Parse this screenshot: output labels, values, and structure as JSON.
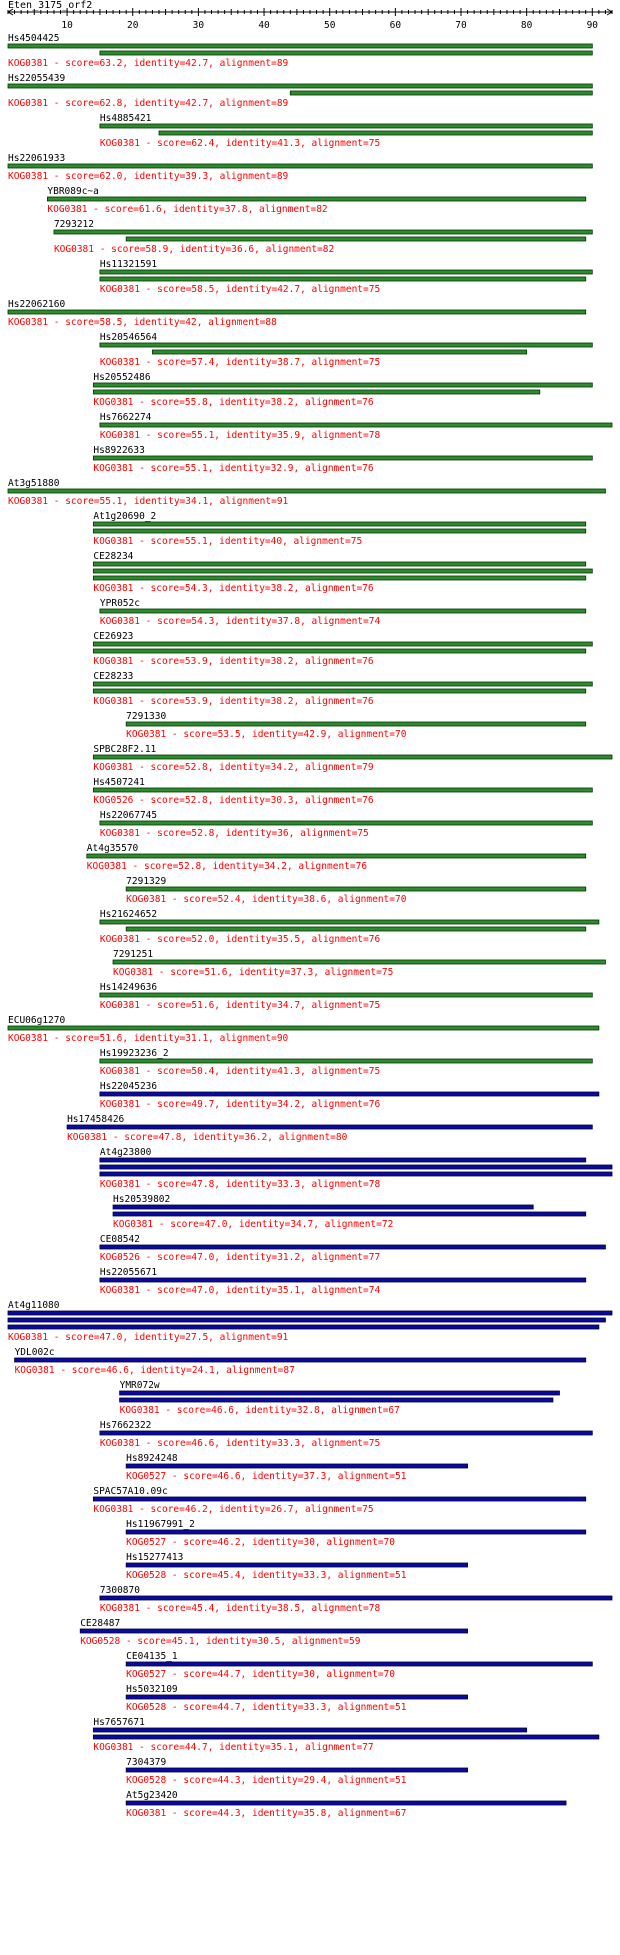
{
  "title": "Eten_3175_orf2",
  "colors": {
    "text": "#000000",
    "score_text": "#ff0000",
    "green_bar": "#2e8b2e",
    "green_bar_edge": "#003300",
    "blue_bar": "#0a0aa0",
    "blue_bar_edge": "#000033"
  },
  "chart_data": {
    "type": "bar",
    "title": "Eten_3175_orf2",
    "xlabel": "",
    "ylabel": "",
    "xlim": [
      1,
      93
    ],
    "x_tick_labels": [
      "10",
      "20",
      "30",
      "40",
      "50",
      "60",
      "70",
      "80",
      "90"
    ],
    "x_ticks": [
      10,
      20,
      30,
      40,
      50,
      60,
      70,
      80,
      90
    ],
    "grid": false,
    "legend": "none",
    "hits": [
      {
        "name": "Hs4504425",
        "label": "KOG0381 - score=63.2, identity=42.7, alignment=89",
        "color": "green",
        "segments": [
          [
            1,
            90
          ],
          [
            15,
            90
          ]
        ]
      },
      {
        "name": "Hs22055439",
        "label": "KOG0381 - score=62.8, identity=42.7, alignment=89",
        "color": "green",
        "segments": [
          [
            1,
            90
          ],
          [
            44,
            90
          ]
        ]
      },
      {
        "name": "Hs4885421",
        "label": "KOG0381 - score=62.4, identity=41.3, alignment=75",
        "color": "green",
        "segments": [
          [
            15,
            90
          ],
          [
            24,
            90
          ]
        ]
      },
      {
        "name": "Hs22061933",
        "label": "KOG0381 - score=62.0, identity=39.3, alignment=89",
        "color": "green",
        "segments": [
          [
            1,
            90
          ]
        ]
      },
      {
        "name": "YBR089c~a",
        "label": "KOG0381 - score=61.6, identity=37.8, alignment=82",
        "color": "green",
        "segments": [
          [
            7,
            89
          ]
        ]
      },
      {
        "name": "7293212",
        "label": "KOG0381 - score=58.9, identity=36.6, alignment=82",
        "color": "green",
        "segments": [
          [
            8,
            90
          ],
          [
            19,
            89
          ]
        ]
      },
      {
        "name": "Hs11321591",
        "label": "KOG0381 - score=58.5, identity=42.7, alignment=75",
        "color": "green",
        "segments": [
          [
            15,
            90
          ],
          [
            15,
            89
          ]
        ]
      },
      {
        "name": "Hs22062160",
        "label": "KOG0381 - score=58.5, identity=42, alignment=88",
        "color": "green",
        "segments": [
          [
            1,
            89
          ]
        ]
      },
      {
        "name": "Hs20546564",
        "label": "KOG0381 - score=57.4, identity=38.7, alignment=75",
        "color": "green",
        "segments": [
          [
            15,
            90
          ],
          [
            23,
            80
          ]
        ]
      },
      {
        "name": "Hs20552486",
        "label": "KOG0381 - score=55.8, identity=38.2, alignment=76",
        "color": "green",
        "segments": [
          [
            14,
            90
          ],
          [
            14,
            82
          ]
        ]
      },
      {
        "name": "Hs7662274",
        "label": "KOG0381 - score=55.1, identity=35.9, alignment=78",
        "color": "green",
        "segments": [
          [
            15,
            93
          ]
        ]
      },
      {
        "name": "Hs8922633",
        "label": "KOG0381 - score=55.1, identity=32.9, alignment=76",
        "color": "green",
        "segments": [
          [
            14,
            90
          ]
        ]
      },
      {
        "name": "At3g51880",
        "label": "KOG0381 - score=55.1, identity=34.1, alignment=91",
        "color": "green",
        "segments": [
          [
            1,
            92
          ]
        ]
      },
      {
        "name": "At1g20690_2",
        "label": "KOG0381 - score=55.1, identity=40, alignment=75",
        "color": "green",
        "segments": [
          [
            14,
            89
          ],
          [
            14,
            89
          ]
        ]
      },
      {
        "name": "CE28234",
        "label": "KOG0381 - score=54.3, identity=38.2, alignment=76",
        "color": "green",
        "segments": [
          [
            14,
            89
          ],
          [
            14,
            90
          ],
          [
            14,
            89
          ]
        ]
      },
      {
        "name": "YPR052c",
        "label": "KOG0381 - score=54.3, identity=37.8, alignment=74",
        "color": "green",
        "segments": [
          [
            15,
            89
          ]
        ]
      },
      {
        "name": "CE26923",
        "label": "KOG0381 - score=53.9, identity=38.2, alignment=76",
        "color": "green",
        "segments": [
          [
            14,
            90
          ],
          [
            14,
            89
          ]
        ]
      },
      {
        "name": "CE28233",
        "label": "KOG0381 - score=53.9, identity=38.2, alignment=76",
        "color": "green",
        "segments": [
          [
            14,
            90
          ],
          [
            14,
            89
          ]
        ]
      },
      {
        "name": "7291330",
        "label": "KOG0381 - score=53.5, identity=42.9, alignment=70",
        "color": "green",
        "segments": [
          [
            19,
            89
          ]
        ]
      },
      {
        "name": "SPBC28F2.11",
        "label": "KOG0381 - score=52.8, identity=34.2, alignment=79",
        "color": "green",
        "segments": [
          [
            14,
            93
          ]
        ]
      },
      {
        "name": "Hs4507241",
        "label": "KOG0526 - score=52.8, identity=30.3, alignment=76",
        "color": "green",
        "segments": [
          [
            14,
            90
          ]
        ]
      },
      {
        "name": "Hs22067745",
        "label": "KOG0381 - score=52.8, identity=36, alignment=75",
        "color": "green",
        "segments": [
          [
            15,
            90
          ]
        ]
      },
      {
        "name": "At4g35570",
        "label": "KOG0381 - score=52.8, identity=34.2, alignment=76",
        "color": "green",
        "segments": [
          [
            13,
            89
          ]
        ]
      },
      {
        "name": "7291329",
        "label": "KOG0381 - score=52.4, identity=38.6, alignment=70",
        "color": "green",
        "segments": [
          [
            19,
            89
          ]
        ]
      },
      {
        "name": "Hs21624652",
        "label": "KOG0381 - score=52.0, identity=35.5, alignment=76",
        "color": "green",
        "segments": [
          [
            15,
            91
          ],
          [
            19,
            89
          ]
        ]
      },
      {
        "name": "7291251",
        "label": "KOG0381 - score=51.6, identity=37.3, alignment=75",
        "color": "green",
        "segments": [
          [
            17,
            92
          ]
        ]
      },
      {
        "name": "Hs14249636",
        "label": "KOG0381 - score=51.6, identity=34.7, alignment=75",
        "color": "green",
        "segments": [
          [
            15,
            90
          ]
        ]
      },
      {
        "name": "ECU06g1270",
        "label": "KOG0381 - score=51.6, identity=31.1, alignment=90",
        "color": "green",
        "segments": [
          [
            1,
            91
          ]
        ]
      },
      {
        "name": "Hs19923236_2",
        "label": "KOG0381 - score=50.4, identity=41.3, alignment=75",
        "color": "green",
        "segments": [
          [
            15,
            90
          ]
        ]
      },
      {
        "name": "Hs22045236",
        "label": "KOG0381 - score=49.7, identity=34.2, alignment=76",
        "color": "blue",
        "segments": [
          [
            15,
            91
          ]
        ]
      },
      {
        "name": "Hs17458426",
        "label": "KOG0381 - score=47.8, identity=36.2, alignment=80",
        "color": "blue",
        "segments": [
          [
            10,
            90
          ]
        ]
      },
      {
        "name": "At4g23800",
        "label": "KOG0381 - score=47.8, identity=33.3, alignment=78",
        "color": "blue",
        "segments": [
          [
            15,
            89
          ],
          [
            15,
            93
          ],
          [
            15,
            93
          ]
        ]
      },
      {
        "name": "Hs20539802",
        "label": "KOG0381 - score=47.0, identity=34.7, alignment=72",
        "color": "blue",
        "segments": [
          [
            17,
            81
          ],
          [
            17,
            89
          ]
        ]
      },
      {
        "name": "CE08542",
        "label": "KOG0526 - score=47.0, identity=31.2, alignment=77",
        "color": "blue",
        "segments": [
          [
            15,
            92
          ]
        ]
      },
      {
        "name": "Hs22055671",
        "label": "KOG0381 - score=47.0, identity=35.1, alignment=74",
        "color": "blue",
        "segments": [
          [
            15,
            89
          ]
        ]
      },
      {
        "name": "At4g11080",
        "label": "KOG0381 - score=47.0, identity=27.5, alignment=91",
        "color": "blue",
        "segments": [
          [
            1,
            93
          ],
          [
            1,
            92
          ],
          [
            1,
            91
          ]
        ]
      },
      {
        "name": "YDL002c",
        "label": "KOG0381 - score=46.6, identity=24.1, alignment=87",
        "color": "blue",
        "segments": [
          [
            2,
            89
          ]
        ]
      },
      {
        "name": "YMR072w",
        "label": "KOG0381 - score=46.6, identity=32.8, alignment=67",
        "color": "blue",
        "segments": [
          [
            18,
            85
          ],
          [
            18,
            84
          ]
        ]
      },
      {
        "name": "Hs7662322",
        "label": "KOG0381 - score=46.6, identity=33.3, alignment=75",
        "color": "blue",
        "segments": [
          [
            15,
            90
          ]
        ]
      },
      {
        "name": "Hs8924248",
        "label": "KOG0527 - score=46.6, identity=37.3, alignment=51",
        "color": "blue",
        "segments": [
          [
            19,
            71
          ]
        ]
      },
      {
        "name": "SPAC57A10.09c",
        "label": "KOG0381 - score=46.2, identity=26.7, alignment=75",
        "color": "blue",
        "segments": [
          [
            14,
            89
          ]
        ]
      },
      {
        "name": "Hs11967991_2",
        "label": "KOG0527 - score=46.2, identity=30, alignment=70",
        "color": "blue",
        "segments": [
          [
            19,
            89
          ]
        ]
      },
      {
        "name": "Hs15277413",
        "label": "KOG0528 - score=45.4, identity=33.3, alignment=51",
        "color": "blue",
        "segments": [
          [
            19,
            71
          ]
        ]
      },
      {
        "name": "7300870",
        "label": "KOG0381 - score=45.4, identity=38.5, alignment=78",
        "color": "blue",
        "segments": [
          [
            15,
            93
          ]
        ]
      },
      {
        "name": "CE28487",
        "label": "KOG0528 - score=45.1, identity=30.5, alignment=59",
        "color": "blue",
        "segments": [
          [
            12,
            71
          ]
        ]
      },
      {
        "name": "CE04135_1",
        "label": "KOG0527 - score=44.7, identity=30, alignment=70",
        "color": "blue",
        "segments": [
          [
            19,
            90
          ]
        ]
      },
      {
        "name": "Hs5032109",
        "label": "KOG0528 - score=44.7, identity=33.3, alignment=51",
        "color": "blue",
        "segments": [
          [
            19,
            71
          ]
        ]
      },
      {
        "name": "Hs7657671",
        "label": "KOG0381 - score=44.7, identity=35.1, alignment=77",
        "color": "blue",
        "segments": [
          [
            14,
            80
          ],
          [
            14,
            91
          ]
        ]
      },
      {
        "name": "7304379",
        "label": "KOG0528 - score=44.3, identity=29.4, alignment=51",
        "color": "blue",
        "segments": [
          [
            19,
            71
          ]
        ]
      },
      {
        "name": "At5g23420",
        "label": "KOG0381 - score=44.3, identity=35.8, alignment=67",
        "color": "blue",
        "segments": [
          [
            19,
            86
          ]
        ]
      }
    ]
  }
}
